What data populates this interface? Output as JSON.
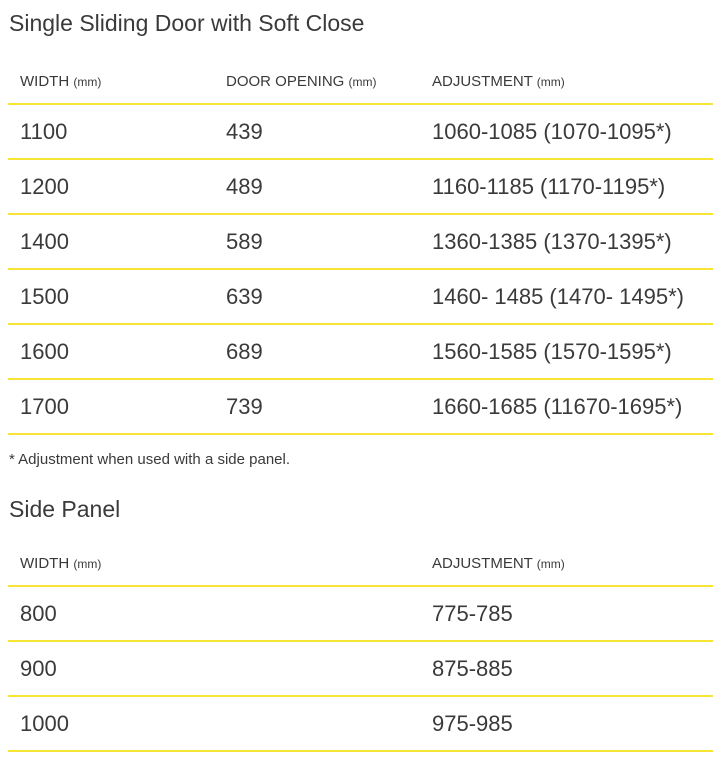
{
  "section1": {
    "title": "Single Sliding Door with Soft Close",
    "headers": [
      {
        "label": "WIDTH",
        "unit": "(mm)"
      },
      {
        "label": "DOOR OPENING",
        "unit": "(mm)"
      },
      {
        "label": "ADJUSTMENT",
        "unit": "(mm)"
      }
    ],
    "rows": [
      [
        "1100",
        "439",
        "1060-1085 (1070-1095*)"
      ],
      [
        "1200",
        "489",
        "1160-1185 (1170-1195*)"
      ],
      [
        "1400",
        "589",
        "1360-1385 (1370-1395*)"
      ],
      [
        "1500",
        "639",
        "1460- 1485 (1470- 1495*)"
      ],
      [
        "1600",
        "689",
        "1560-1585 (1570-1595*)"
      ],
      [
        "1700",
        "739",
        "1660-1685 (11670-1695*)"
      ]
    ],
    "footnote": "* Adjustment when used with a side panel."
  },
  "section2": {
    "title": "Side Panel",
    "headers": [
      {
        "label": "WIDTH",
        "unit": "(mm)"
      },
      {
        "label": "ADJUSTMENT",
        "unit": "(mm)"
      }
    ],
    "rows": [
      [
        "800",
        "775-785"
      ],
      [
        "900",
        "875-885"
      ],
      [
        "1000",
        "975-985"
      ]
    ]
  },
  "colors": {
    "divider": "#f7e535",
    "text": "#3a3a3a"
  }
}
